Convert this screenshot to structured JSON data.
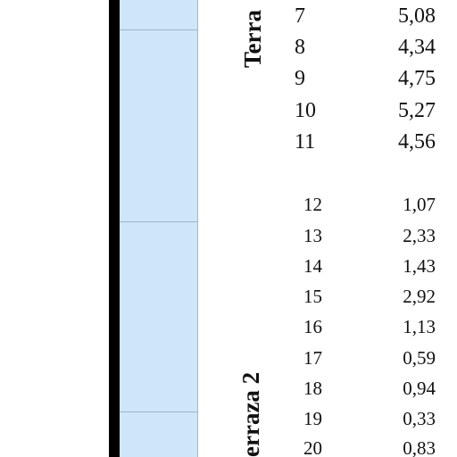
{
  "groups": {
    "terraza_1_label": "Terra",
    "terraza_2_label": "erraza 2"
  },
  "rows_group_1": [
    {
      "n": "7",
      "v": "5,08"
    },
    {
      "n": "8",
      "v": "4,34"
    },
    {
      "n": "9",
      "v": "4,75"
    },
    {
      "n": "10",
      "v": "5,27"
    },
    {
      "n": "11",
      "v": "4,56"
    }
  ],
  "rows_group_2": [
    {
      "n": "12",
      "v": "1,07"
    },
    {
      "n": "13",
      "v": "2,33"
    },
    {
      "n": "14",
      "v": "1,43"
    },
    {
      "n": "15",
      "v": "2,92"
    },
    {
      "n": "16",
      "v": "1,13"
    },
    {
      "n": "17",
      "v": "0,59"
    },
    {
      "n": "18",
      "v": "0,94"
    },
    {
      "n": "19",
      "v": "0,33"
    },
    {
      "n": "20",
      "v": "0,83"
    }
  ],
  "colors": {
    "column_fill": "#cfe6f8",
    "bar": "#000000"
  }
}
